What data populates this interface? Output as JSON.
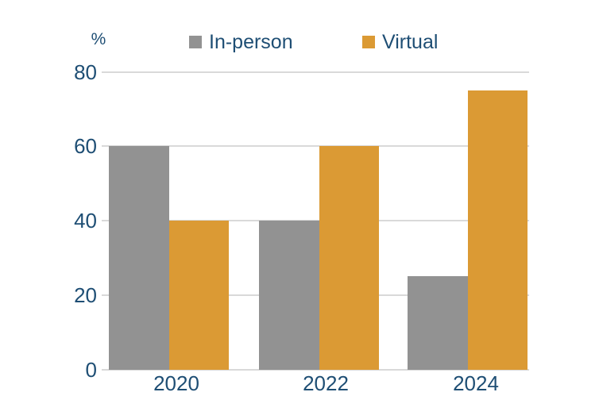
{
  "chart_data": {
    "type": "bar",
    "title": "",
    "unit_label": "%",
    "categories": [
      "2020",
      "2022",
      "2024"
    ],
    "series": [
      {
        "name": "In-person",
        "color": "#929292",
        "values": [
          60,
          40,
          25
        ]
      },
      {
        "name": "Virtual",
        "color": "#DB9A34",
        "values": [
          40,
          60,
          75
        ]
      }
    ],
    "ylim": [
      0,
      80
    ],
    "yticks": [
      0,
      20,
      40,
      60,
      80
    ],
    "grid": true,
    "legend_position": "top"
  },
  "colors": {
    "text": "#1E4E74",
    "gridline": "#D9D9D9",
    "background": "#FFFFFF"
  }
}
